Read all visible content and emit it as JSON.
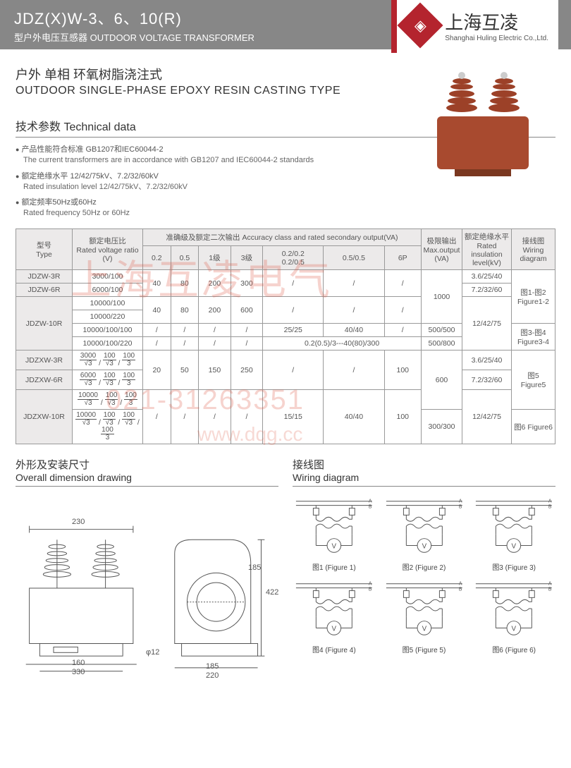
{
  "header": {
    "model": "JDZ(X)W-3、6、10(R)",
    "subtitle": "型户外电压互感器 OUTDOOR VOLTAGE TRANSFORMER",
    "brand_cn": "上海互凌",
    "brand_en": "Shanghai Huling Electric Co.,Ltd."
  },
  "titles": {
    "cn": "户外  单相  环氧树脂浇注式",
    "en": "OUTDOOR SINGLE-PHASE EPOXY RESIN CASTING TYPE"
  },
  "tech_heading": "技术参数  Technical data",
  "bullets": [
    {
      "cn": "产品性能符合标准 GB1207和IEC60044-2",
      "en": "The current transformers are in accordance with GB1207 and IEC60044-2 standards"
    },
    {
      "cn": "额定绝缘水平 12/42/75kV、7.2/32/60kV",
      "en": "Rated insulation level 12/42/75kV、7.2/32/60kV"
    },
    {
      "cn": "额定频率50Hz或60Hz",
      "en": "Rated frequency 50Hz or 60Hz"
    }
  ],
  "table": {
    "headers": {
      "type": "型号\nType",
      "ratio": "额定电压比\nRated voltage ratio\n(V)",
      "accuracy": "准确级及额定二次输出\nAccuracy class and rated secondary output(VA)",
      "cols": [
        "0.2",
        "0.5",
        "1级",
        "3级",
        "0.2/0.2\n0.2/0.5",
        "0.5/0.5",
        "6P"
      ],
      "max": "极限输出\nMax.output\n(VA)",
      "insul": "额定绝缘水平\nRated insulation\nlevel(kV)",
      "wiring": "接线图\nWiring\ndiagram"
    },
    "rows": [
      {
        "type": "JDZW-3R",
        "ratio": "3000/100",
        "c": [
          "",
          "",
          "",
          "",
          "",
          "",
          ""
        ],
        "max": "",
        "insul": "3.6/25/40",
        "wiring": ""
      },
      {
        "type": "JDZW-6R",
        "ratio": "6000/100",
        "c": [
          "40",
          "80",
          "200",
          "300",
          "/",
          "/",
          "/"
        ],
        "max": "1000",
        "insul": "7.2/32/60",
        "wiring": "图1-图2\nFigure1-2"
      },
      {
        "type": "",
        "ratio": "10000/100",
        "c": [
          "",
          "",
          "",
          "",
          "",
          "",
          ""
        ],
        "max": "",
        "insul": "",
        "wiring": ""
      },
      {
        "type": "JDZW-10R",
        "ratio": "10000/220",
        "c": [
          "40",
          "80",
          "200",
          "600",
          "/",
          "/",
          "/"
        ],
        "max": "",
        "insul": "12/42/75",
        "wiring": ""
      },
      {
        "type": "",
        "ratio": "10000/100/100",
        "c": [
          "/",
          "/",
          "/",
          "/",
          "25/25",
          "40/40",
          "/"
        ],
        "max": "500/500",
        "insul": "",
        "wiring": "图3-图4\nFigure3-4"
      },
      {
        "type": "",
        "ratio": "10000/100/220",
        "c": [
          "/",
          "/",
          "/",
          "/",
          "0.2(0.5)/3---40(80)/300",
          "",
          ""
        ],
        "max": "500/800",
        "insul": "",
        "wiring": ""
      },
      {
        "type": "JDZXW-3R",
        "ratio_frac": [
          [
            "3000",
            "√3"
          ],
          [
            "100",
            "√3"
          ],
          [
            "100",
            "3"
          ]
        ],
        "c": [
          "",
          "",
          "",
          "",
          "",
          "",
          ""
        ],
        "max": "",
        "insul": "3.6/25/40",
        "wiring": ""
      },
      {
        "type": "JDZXW-6R",
        "ratio_frac": [
          [
            "6000",
            "√3"
          ],
          [
            "100",
            "√3"
          ],
          [
            "100",
            "3"
          ]
        ],
        "c": [
          "20",
          "50",
          "150",
          "250",
          "/",
          "/",
          "100"
        ],
        "max": "600",
        "insul": "7.2/32/60",
        "wiring": "图5\nFigure5"
      },
      {
        "type": "JDZXW-10R",
        "ratio_frac": [
          [
            "10000",
            "√3"
          ],
          [
            "100",
            "√3"
          ],
          [
            "100",
            "3"
          ]
        ],
        "c": [
          "",
          "",
          "",
          "",
          "",
          "",
          ""
        ],
        "max": "",
        "insul": "12/42/75",
        "wiring": ""
      },
      {
        "type": "",
        "ratio_frac": [
          [
            "10000",
            "√3"
          ],
          [
            "100",
            "√3"
          ],
          [
            "100",
            "√3"
          ],
          [
            "100",
            "3"
          ]
        ],
        "c": [
          "/",
          "/",
          "/",
          "/",
          "15/15",
          "40/40",
          "100"
        ],
        "max": "300/300",
        "insul": "",
        "wiring": "图6 Figure6"
      }
    ]
  },
  "lower": {
    "dim_cn": "外形及安装尺寸",
    "dim_en": "Overall dimension drawing",
    "wir_cn": "接线图",
    "wir_en": "Wiring diagram",
    "dims": {
      "d230": "230",
      "d422": "422",
      "d185": "185",
      "d185b": "185",
      "d160": "160",
      "d330": "330",
      "d220": "220",
      "d12": "φ12"
    },
    "figs": [
      "图1 (Figure 1)",
      "图2 (Figure 2)",
      "图3 (Figure 3)",
      "图4 (Figure 4)",
      "图5 (Figure 5)",
      "图6 (Figure 6)"
    ]
  },
  "watermark": {
    "w1": "上海互凌电气",
    "w2": "021-31263351",
    "w3": "www.dqg.cc"
  },
  "colors": {
    "header_bg": "#878787",
    "accent": "#b4242e",
    "border": "#999999",
    "text": "#444444",
    "th_bg": "#eceaea",
    "wm": "rgba(220,80,60,0.25)"
  }
}
